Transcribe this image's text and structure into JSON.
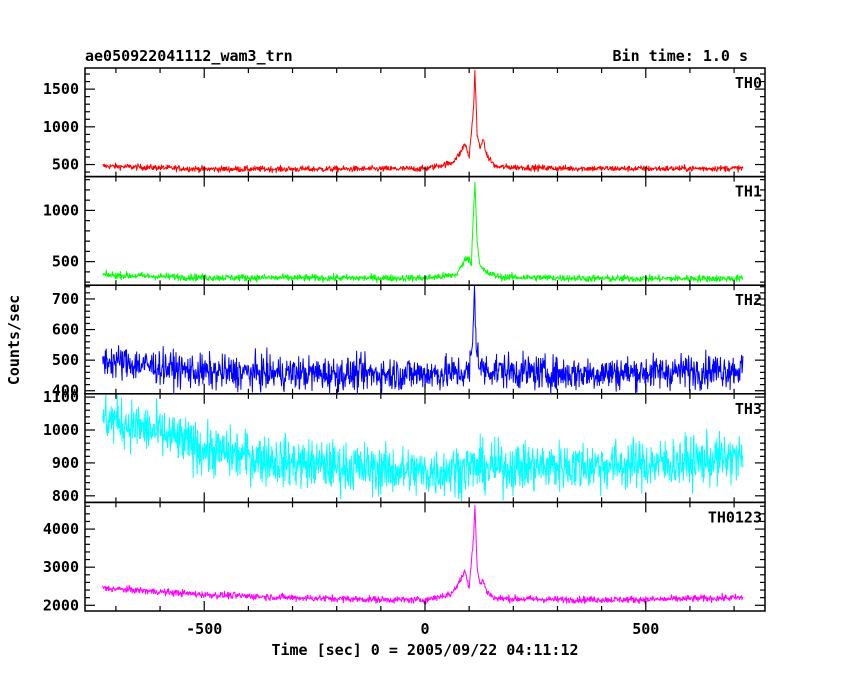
{
  "chart_data": {
    "type": "line",
    "title": "ae050922041112_wam3_trn",
    "subtitle": "Bin time: 1.0 s",
    "xlabel": "Time [sec] 0 = 2005/09/22 04:11:12",
    "ylabel": "Counts/sec",
    "xlim": [
      -770,
      770
    ],
    "xticks": [
      -500,
      0,
      500
    ],
    "x_start": -730,
    "x_end": 720,
    "bin_time": 1.0,
    "grid": false,
    "panels": [
      {
        "name": "TH0",
        "color": "#ff0000",
        "ylim": [
          340,
          1780
        ],
        "yticks": [
          500,
          1000,
          1500
        ],
        "profile": [
          [
            -730,
            480
          ],
          [
            -500,
            440
          ],
          [
            -200,
            440
          ],
          [
            0,
            445
          ],
          [
            60,
            520
          ],
          [
            80,
            650
          ],
          [
            90,
            780
          ],
          [
            100,
            600
          ],
          [
            110,
            1250
          ],
          [
            113,
            1760
          ],
          [
            118,
            900
          ],
          [
            125,
            700
          ],
          [
            130,
            850
          ],
          [
            140,
            620
          ],
          [
            160,
            470
          ],
          [
            300,
            450
          ],
          [
            500,
            445
          ],
          [
            720,
            450
          ]
        ],
        "noise": 20
      },
      {
        "name": "TH1",
        "color": "#00ff00",
        "ylim": [
          270,
          1330
        ],
        "yticks": [
          500,
          1000
        ],
        "profile": [
          [
            -730,
            370
          ],
          [
            -500,
            345
          ],
          [
            -200,
            340
          ],
          [
            0,
            340
          ],
          [
            70,
            370
          ],
          [
            85,
            470
          ],
          [
            95,
            550
          ],
          [
            105,
            480
          ],
          [
            110,
            1000
          ],
          [
            113,
            1290
          ],
          [
            118,
            700
          ],
          [
            125,
            450
          ],
          [
            140,
            390
          ],
          [
            170,
            350
          ],
          [
            400,
            335
          ],
          [
            720,
            335
          ]
        ],
        "noise": 17
      },
      {
        "name": "TH2",
        "color": "#0000ff",
        "ylim": [
          390,
          745
        ],
        "yticks": [
          400,
          500,
          600,
          700
        ],
        "profile": [
          [
            -730,
            500
          ],
          [
            -500,
            460
          ],
          [
            -200,
            455
          ],
          [
            0,
            455
          ],
          [
            100,
            460
          ],
          [
            108,
            550
          ],
          [
            112,
            735
          ],
          [
            116,
            560
          ],
          [
            125,
            470
          ],
          [
            300,
            455
          ],
          [
            500,
            460
          ],
          [
            720,
            470
          ]
        ],
        "noise": 28
      },
      {
        "name": "TH3",
        "color": "#00ffff",
        "ylim": [
          780,
          1110
        ],
        "yticks": [
          800,
          900,
          1000,
          1100
        ],
        "profile": [
          [
            -730,
            1040
          ],
          [
            -600,
            990
          ],
          [
            -500,
            940
          ],
          [
            -300,
            900
          ],
          [
            -100,
            880
          ],
          [
            0,
            870
          ],
          [
            100,
            885
          ],
          [
            300,
            890
          ],
          [
            500,
            895
          ],
          [
            720,
            915
          ]
        ],
        "noise": 38
      },
      {
        "name": "TH0123",
        "color": "#ff00ff",
        "ylim": [
          1850,
          4700
        ],
        "yticks": [
          2000,
          3000,
          4000
        ],
        "profile": [
          [
            -730,
            2450
          ],
          [
            -500,
            2280
          ],
          [
            -300,
            2200
          ],
          [
            -100,
            2150
          ],
          [
            0,
            2140
          ],
          [
            60,
            2300
          ],
          [
            80,
            2650
          ],
          [
            90,
            2900
          ],
          [
            100,
            2500
          ],
          [
            110,
            3800
          ],
          [
            113,
            4650
          ],
          [
            118,
            3000
          ],
          [
            125,
            2500
          ],
          [
            130,
            2700
          ],
          [
            140,
            2350
          ],
          [
            160,
            2180
          ],
          [
            300,
            2150
          ],
          [
            500,
            2150
          ],
          [
            720,
            2200
          ]
        ],
        "noise": 45
      }
    ]
  }
}
